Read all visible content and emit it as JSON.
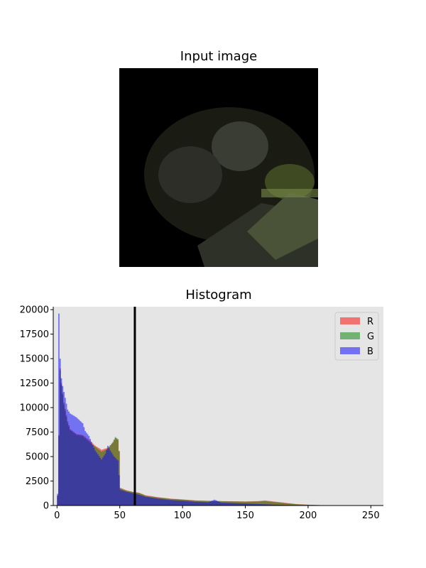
{
  "image_panel": {
    "title": "Input image"
  },
  "chart_data": {
    "type": "bar",
    "title": "Histogram",
    "xlabel": "",
    "ylabel": "",
    "xlim": [
      -3,
      260
    ],
    "ylim": [
      0,
      20300
    ],
    "x_ticks": [
      0,
      50,
      100,
      150,
      200,
      250
    ],
    "y_ticks": [
      0,
      2500,
      5000,
      7500,
      10000,
      12500,
      15000,
      17500,
      20000
    ],
    "x_tick_labels": [
      "0",
      "50",
      "100",
      "150",
      "200",
      "250"
    ],
    "y_tick_labels": [
      "0",
      "2500",
      "5000",
      "7500",
      "10000",
      "12500",
      "15000",
      "17500",
      "20000"
    ],
    "background": "#e5e5e5",
    "grid": false,
    "legend_position": "top-right",
    "threshold_line": {
      "x": 62,
      "color": "#000000"
    },
    "series": [
      {
        "name": "R",
        "color": "#ff0000",
        "alpha": 0.5,
        "points": [
          [
            0,
            1000
          ],
          [
            1,
            7200
          ],
          [
            2,
            14000
          ],
          [
            3,
            12500
          ],
          [
            5,
            10500
          ],
          [
            8,
            8600
          ],
          [
            10,
            7800
          ],
          [
            15,
            7300
          ],
          [
            20,
            7200
          ],
          [
            25,
            6700
          ],
          [
            30,
            6100
          ],
          [
            35,
            5700
          ],
          [
            40,
            5900
          ],
          [
            44,
            6400
          ],
          [
            46,
            6900
          ],
          [
            48,
            6700
          ],
          [
            49,
            5600
          ],
          [
            50,
            1800
          ],
          [
            55,
            1550
          ],
          [
            60,
            1400
          ],
          [
            65,
            1300
          ],
          [
            70,
            1050
          ],
          [
            80,
            850
          ],
          [
            90,
            700
          ],
          [
            100,
            620
          ],
          [
            110,
            520
          ],
          [
            120,
            480
          ],
          [
            130,
            450
          ],
          [
            140,
            430
          ],
          [
            150,
            410
          ],
          [
            160,
            450
          ],
          [
            165,
            520
          ],
          [
            170,
            440
          ],
          [
            180,
            300
          ],
          [
            190,
            150
          ],
          [
            200,
            80
          ],
          [
            210,
            40
          ],
          [
            220,
            15
          ],
          [
            230,
            5
          ],
          [
            240,
            0
          ],
          [
            255,
            0
          ]
        ]
      },
      {
        "name": "G",
        "color": "#008000",
        "alpha": 0.5,
        "points": [
          [
            0,
            1000
          ],
          [
            1,
            7100
          ],
          [
            2,
            13800
          ],
          [
            3,
            12300
          ],
          [
            5,
            10300
          ],
          [
            8,
            8400
          ],
          [
            10,
            7700
          ],
          [
            15,
            7200
          ],
          [
            20,
            7100
          ],
          [
            25,
            6500
          ],
          [
            30,
            6000
          ],
          [
            35,
            5500
          ],
          [
            40,
            5800
          ],
          [
            44,
            6500
          ],
          [
            46,
            7000
          ],
          [
            48,
            6800
          ],
          [
            49,
            5500
          ],
          [
            50,
            1750
          ],
          [
            55,
            1500
          ],
          [
            60,
            1380
          ],
          [
            65,
            1280
          ],
          [
            70,
            1000
          ],
          [
            80,
            820
          ],
          [
            90,
            680
          ],
          [
            100,
            600
          ],
          [
            110,
            510
          ],
          [
            120,
            470
          ],
          [
            130,
            440
          ],
          [
            140,
            420
          ],
          [
            150,
            400
          ],
          [
            160,
            420
          ],
          [
            165,
            450
          ],
          [
            170,
            400
          ],
          [
            180,
            260
          ],
          [
            190,
            130
          ],
          [
            200,
            70
          ],
          [
            210,
            35
          ],
          [
            220,
            12
          ],
          [
            230,
            4
          ],
          [
            240,
            0
          ],
          [
            255,
            0
          ]
        ]
      },
      {
        "name": "B",
        "color": "#0000ff",
        "alpha": 0.5,
        "points": [
          [
            0,
            1200
          ],
          [
            1,
            19600
          ],
          [
            2,
            15000
          ],
          [
            3,
            13000
          ],
          [
            4,
            12200
          ],
          [
            6,
            11000
          ],
          [
            8,
            9800
          ],
          [
            10,
            9400
          ],
          [
            15,
            9000
          ],
          [
            20,
            8400
          ],
          [
            22,
            7600
          ],
          [
            25,
            7100
          ],
          [
            30,
            5600
          ],
          [
            35,
            4700
          ],
          [
            38,
            5300
          ],
          [
            40,
            6100
          ],
          [
            42,
            5600
          ],
          [
            45,
            5000
          ],
          [
            48,
            4600
          ],
          [
            50,
            1600
          ],
          [
            55,
            1400
          ],
          [
            60,
            1250
          ],
          [
            65,
            1100
          ],
          [
            70,
            900
          ],
          [
            80,
            700
          ],
          [
            90,
            560
          ],
          [
            100,
            480
          ],
          [
            110,
            380
          ],
          [
            120,
            330
          ],
          [
            125,
            600
          ],
          [
            130,
            300
          ],
          [
            140,
            250
          ],
          [
            150,
            200
          ],
          [
            160,
            150
          ],
          [
            170,
            100
          ],
          [
            180,
            60
          ],
          [
            190,
            30
          ],
          [
            200,
            10
          ],
          [
            210,
            0
          ],
          [
            255,
            0
          ]
        ]
      }
    ]
  }
}
